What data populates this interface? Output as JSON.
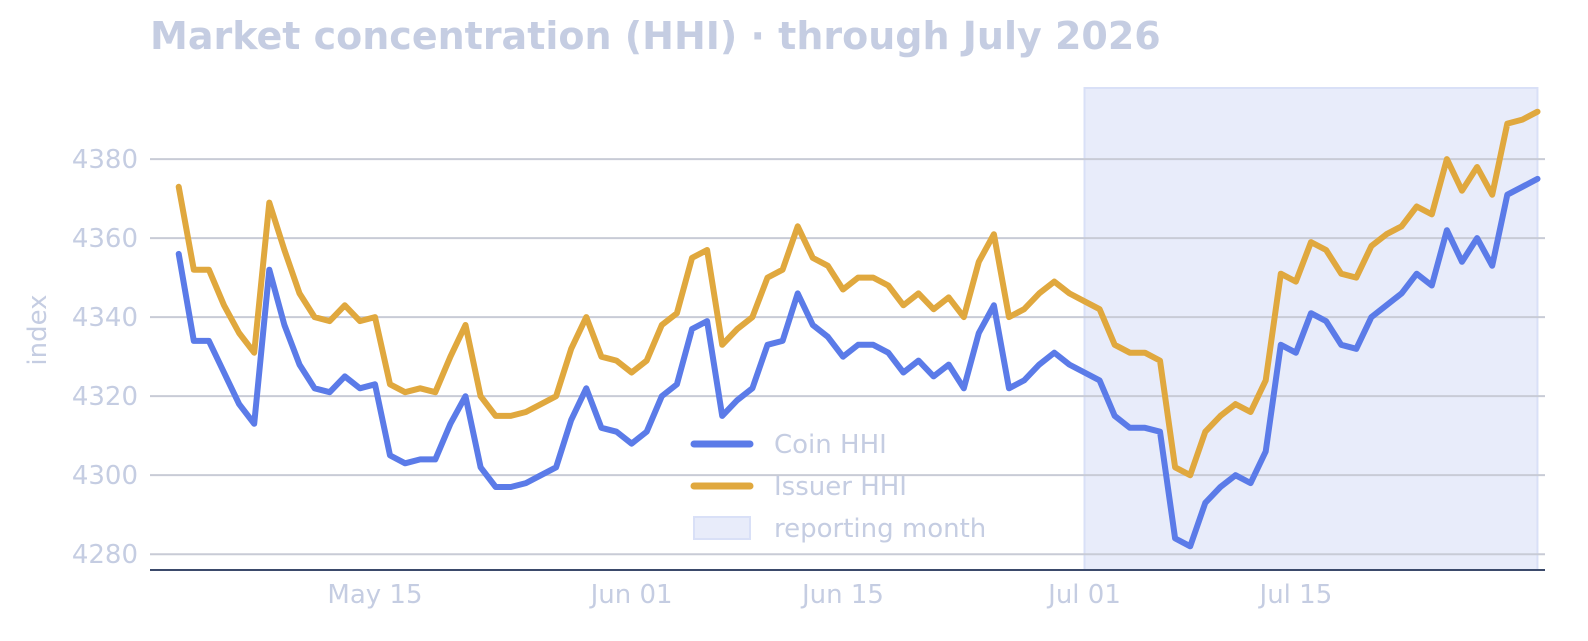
{
  "chart_data": {
    "type": "line",
    "title": "Market concentration (HHI) · through July 2026",
    "xlabel": "",
    "ylabel": "index",
    "ylim": [
      4276,
      4398
    ],
    "yticks": [
      4280,
      4300,
      4320,
      4340,
      4360,
      4380
    ],
    "xlim": [
      "2026-05-01",
      "2026-07-31"
    ],
    "xticks": [
      {
        "date": "2026-05-15",
        "label": "May 15"
      },
      {
        "date": "2026-06-01",
        "label": "Jun 01"
      },
      {
        "date": "2026-06-15",
        "label": "Jun 15"
      },
      {
        "date": "2026-07-01",
        "label": "Jul 01"
      },
      {
        "date": "2026-07-15",
        "label": "Jul 15"
      }
    ],
    "grid": "horizontal",
    "legend_position": "lower-center",
    "shaded_region": {
      "label": "reporting month",
      "start": "2026-07-01",
      "end": "2026-07-31",
      "color": "#e8ecfa"
    },
    "colors": {
      "coin": "#5b7be8",
      "issuer": "#e0a83e",
      "grid": "#c8cbd6",
      "axis": "#3b4a6b"
    },
    "series": [
      {
        "name": "Coin HHI",
        "color": "#5b7be8",
        "points": [
          [
            "2026-05-02",
            4356
          ],
          [
            "2026-05-03",
            4334
          ],
          [
            "2026-05-04",
            4334
          ],
          [
            "2026-05-05",
            4326
          ],
          [
            "2026-05-06",
            4318
          ],
          [
            "2026-05-07",
            4313
          ],
          [
            "2026-05-08",
            4352
          ],
          [
            "2026-05-09",
            4338
          ],
          [
            "2026-05-10",
            4328
          ],
          [
            "2026-05-11",
            4322
          ],
          [
            "2026-05-12",
            4321
          ],
          [
            "2026-05-13",
            4325
          ],
          [
            "2026-05-14",
            4322
          ],
          [
            "2026-05-15",
            4323
          ],
          [
            "2026-05-16",
            4305
          ],
          [
            "2026-05-17",
            4303
          ],
          [
            "2026-05-18",
            4304
          ],
          [
            "2026-05-19",
            4304
          ],
          [
            "2026-05-20",
            4313
          ],
          [
            "2026-05-21",
            4320
          ],
          [
            "2026-05-22",
            4302
          ],
          [
            "2026-05-23",
            4297
          ],
          [
            "2026-05-24",
            4297
          ],
          [
            "2026-05-25",
            4298
          ],
          [
            "2026-05-26",
            4300
          ],
          [
            "2026-05-27",
            4302
          ],
          [
            "2026-05-28",
            4314
          ],
          [
            "2026-05-29",
            4322
          ],
          [
            "2026-05-30",
            4312
          ],
          [
            "2026-05-31",
            4311
          ],
          [
            "2026-06-01",
            4308
          ],
          [
            "2026-06-02",
            4311
          ],
          [
            "2026-06-03",
            4320
          ],
          [
            "2026-06-04",
            4323
          ],
          [
            "2026-06-05",
            4337
          ],
          [
            "2026-06-06",
            4339
          ],
          [
            "2026-06-07",
            4315
          ],
          [
            "2026-06-08",
            4319
          ],
          [
            "2026-06-09",
            4322
          ],
          [
            "2026-06-10",
            4333
          ],
          [
            "2026-06-11",
            4334
          ],
          [
            "2026-06-12",
            4346
          ],
          [
            "2026-06-13",
            4338
          ],
          [
            "2026-06-14",
            4335
          ],
          [
            "2026-06-15",
            4330
          ],
          [
            "2026-06-16",
            4333
          ],
          [
            "2026-06-17",
            4333
          ],
          [
            "2026-06-18",
            4331
          ],
          [
            "2026-06-19",
            4326
          ],
          [
            "2026-06-20",
            4329
          ],
          [
            "2026-06-21",
            4325
          ],
          [
            "2026-06-22",
            4328
          ],
          [
            "2026-06-23",
            4322
          ],
          [
            "2026-06-24",
            4336
          ],
          [
            "2026-06-25",
            4343
          ],
          [
            "2026-06-26",
            4322
          ],
          [
            "2026-06-27",
            4324
          ],
          [
            "2026-06-28",
            4328
          ],
          [
            "2026-06-29",
            4331
          ],
          [
            "2026-06-30",
            4328
          ],
          [
            "2026-07-01",
            4326
          ],
          [
            "2026-07-02",
            4324
          ],
          [
            "2026-07-03",
            4315
          ],
          [
            "2026-07-04",
            4312
          ],
          [
            "2026-07-05",
            4312
          ],
          [
            "2026-07-06",
            4311
          ],
          [
            "2026-07-07",
            4284
          ],
          [
            "2026-07-08",
            4282
          ],
          [
            "2026-07-09",
            4293
          ],
          [
            "2026-07-10",
            4297
          ],
          [
            "2026-07-11",
            4300
          ],
          [
            "2026-07-12",
            4298
          ],
          [
            "2026-07-13",
            4306
          ],
          [
            "2026-07-14",
            4333
          ],
          [
            "2026-07-15",
            4331
          ],
          [
            "2026-07-16",
            4341
          ],
          [
            "2026-07-17",
            4339
          ],
          [
            "2026-07-18",
            4333
          ],
          [
            "2026-07-19",
            4332
          ],
          [
            "2026-07-20",
            4340
          ],
          [
            "2026-07-21",
            4343
          ],
          [
            "2026-07-22",
            4346
          ],
          [
            "2026-07-23",
            4351
          ],
          [
            "2026-07-24",
            4348
          ],
          [
            "2026-07-25",
            4362
          ],
          [
            "2026-07-26",
            4354
          ],
          [
            "2026-07-27",
            4360
          ],
          [
            "2026-07-28",
            4353
          ],
          [
            "2026-07-29",
            4371
          ],
          [
            "2026-07-30",
            4373
          ],
          [
            "2026-07-31",
            4375
          ]
        ]
      },
      {
        "name": "Issuer HHI",
        "color": "#e0a83e",
        "points": [
          [
            "2026-05-02",
            4373
          ],
          [
            "2026-05-03",
            4352
          ],
          [
            "2026-05-04",
            4352
          ],
          [
            "2026-05-05",
            4343
          ],
          [
            "2026-05-06",
            4336
          ],
          [
            "2026-05-07",
            4331
          ],
          [
            "2026-05-08",
            4369
          ],
          [
            "2026-05-09",
            4357
          ],
          [
            "2026-05-10",
            4346
          ],
          [
            "2026-05-11",
            4340
          ],
          [
            "2026-05-12",
            4339
          ],
          [
            "2026-05-13",
            4343
          ],
          [
            "2026-05-14",
            4339
          ],
          [
            "2026-05-15",
            4340
          ],
          [
            "2026-05-16",
            4323
          ],
          [
            "2026-05-17",
            4321
          ],
          [
            "2026-05-18",
            4322
          ],
          [
            "2026-05-19",
            4321
          ],
          [
            "2026-05-20",
            4330
          ],
          [
            "2026-05-21",
            4338
          ],
          [
            "2026-05-22",
            4320
          ],
          [
            "2026-05-23",
            4315
          ],
          [
            "2026-05-24",
            4315
          ],
          [
            "2026-05-25",
            4316
          ],
          [
            "2026-05-26",
            4318
          ],
          [
            "2026-05-27",
            4320
          ],
          [
            "2026-05-28",
            4332
          ],
          [
            "2026-05-29",
            4340
          ],
          [
            "2026-05-30",
            4330
          ],
          [
            "2026-05-31",
            4329
          ],
          [
            "2026-06-01",
            4326
          ],
          [
            "2026-06-02",
            4329
          ],
          [
            "2026-06-03",
            4338
          ],
          [
            "2026-06-04",
            4341
          ],
          [
            "2026-06-05",
            4355
          ],
          [
            "2026-06-06",
            4357
          ],
          [
            "2026-06-07",
            4333
          ],
          [
            "2026-06-08",
            4337
          ],
          [
            "2026-06-09",
            4340
          ],
          [
            "2026-06-10",
            4350
          ],
          [
            "2026-06-11",
            4352
          ],
          [
            "2026-06-12",
            4363
          ],
          [
            "2026-06-13",
            4355
          ],
          [
            "2026-06-14",
            4353
          ],
          [
            "2026-06-15",
            4347
          ],
          [
            "2026-06-16",
            4350
          ],
          [
            "2026-06-17",
            4350
          ],
          [
            "2026-06-18",
            4348
          ],
          [
            "2026-06-19",
            4343
          ],
          [
            "2026-06-20",
            4346
          ],
          [
            "2026-06-21",
            4342
          ],
          [
            "2026-06-22",
            4345
          ],
          [
            "2026-06-23",
            4340
          ],
          [
            "2026-06-24",
            4354
          ],
          [
            "2026-06-25",
            4361
          ],
          [
            "2026-06-26",
            4340
          ],
          [
            "2026-06-27",
            4342
          ],
          [
            "2026-06-28",
            4346
          ],
          [
            "2026-06-29",
            4349
          ],
          [
            "2026-06-30",
            4346
          ],
          [
            "2026-07-01",
            4344
          ],
          [
            "2026-07-02",
            4342
          ],
          [
            "2026-07-03",
            4333
          ],
          [
            "2026-07-04",
            4331
          ],
          [
            "2026-07-05",
            4331
          ],
          [
            "2026-07-06",
            4329
          ],
          [
            "2026-07-07",
            4302
          ],
          [
            "2026-07-08",
            4300
          ],
          [
            "2026-07-09",
            4311
          ],
          [
            "2026-07-10",
            4315
          ],
          [
            "2026-07-11",
            4318
          ],
          [
            "2026-07-12",
            4316
          ],
          [
            "2026-07-13",
            4324
          ],
          [
            "2026-07-14",
            4351
          ],
          [
            "2026-07-15",
            4349
          ],
          [
            "2026-07-16",
            4359
          ],
          [
            "2026-07-17",
            4357
          ],
          [
            "2026-07-18",
            4351
          ],
          [
            "2026-07-19",
            4350
          ],
          [
            "2026-07-20",
            4358
          ],
          [
            "2026-07-21",
            4361
          ],
          [
            "2026-07-22",
            4363
          ],
          [
            "2026-07-23",
            4368
          ],
          [
            "2026-07-24",
            4366
          ],
          [
            "2026-07-25",
            4380
          ],
          [
            "2026-07-26",
            4372
          ],
          [
            "2026-07-27",
            4378
          ],
          [
            "2026-07-28",
            4371
          ],
          [
            "2026-07-29",
            4389
          ],
          [
            "2026-07-30",
            4390
          ],
          [
            "2026-07-31",
            4392
          ]
        ]
      }
    ]
  }
}
